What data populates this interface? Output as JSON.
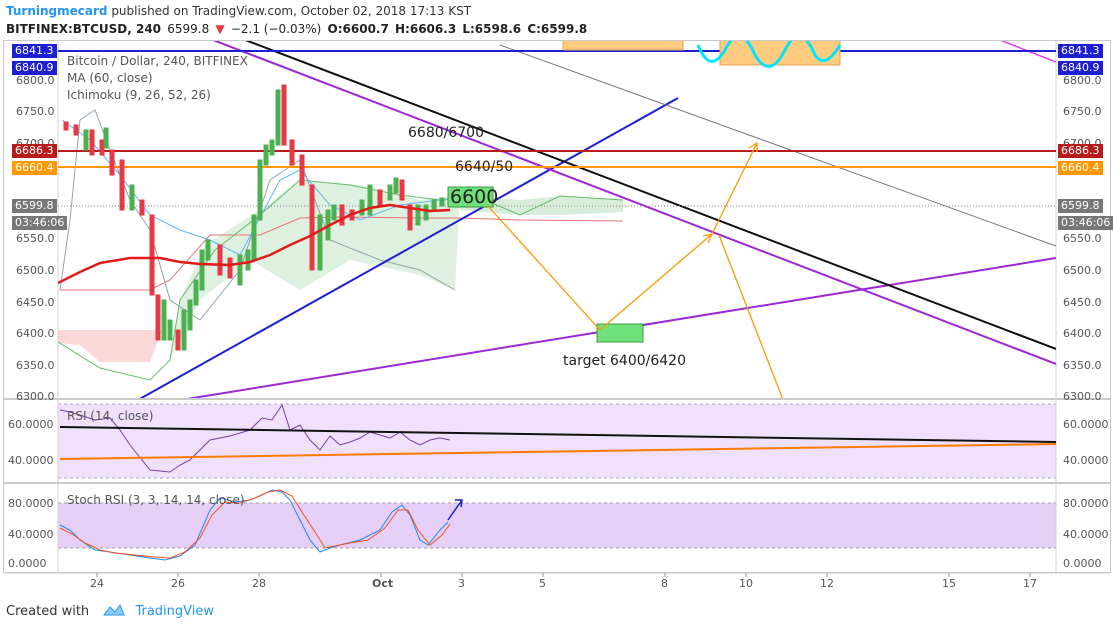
{
  "header": {
    "author": "Turningmecard",
    "published_text": "published on TradingView.com, October 02, 2018 17:13 KST",
    "symbol": "BITFINEX:BTCUSD, 240",
    "last": "6599.8",
    "change_arrow": "▼",
    "change": "−2.1 (−0.03%)",
    "open": "O:6600.7",
    "high": "H:6606.3",
    "low": "L:6598.6",
    "close": "C:6599.8"
  },
  "legend": {
    "series": "Bitcoin / Dollar, 240, BITFINEX",
    "ma": "MA (60, close)",
    "ichimoku": "Ichimoku (9, 26, 52, 26)",
    "rsi": "RSI (14, close)",
    "stoch": "Stoch RSI (3, 3, 14, 14, close)"
  },
  "price_axis": [
    "6800.0",
    "6750.0",
    "6700.0",
    "6650.0",
    "6600.0",
    "6550.0",
    "6500.0",
    "6450.0",
    "6400.0",
    "6350.0",
    "6300.0"
  ],
  "rsi_axis": [
    "60.0000",
    "40.0000"
  ],
  "stoch_axis": [
    "80.0000",
    "40.0000",
    "0.0000"
  ],
  "time_axis": [
    "24",
    "26",
    "28",
    "Oct",
    "3",
    "5",
    "8",
    "10",
    "12",
    "15",
    "17"
  ],
  "price_tags": {
    "top_a": "6841.3",
    "top_b": "6840.9",
    "red": "6686.3",
    "orange": "6660.4",
    "last": "6599.8",
    "countdown": "03:46:06"
  },
  "annotations": {
    "a1": "6680/6700",
    "a2": "6640/50",
    "a3": "6600",
    "target": "target 6400/6420"
  },
  "footer": {
    "created": "Created with",
    "brand": "TradingView"
  },
  "colors": {
    "brand": "#2196f3",
    "red_line": "#b71c1c",
    "orange_line": "#ff9800",
    "blue_line": "#1e1ed2",
    "purple_line": "#9c27d6",
    "ma_line": "#e31a1a",
    "candle_up": "#4caf50",
    "candle_down": "#e53945"
  }
}
